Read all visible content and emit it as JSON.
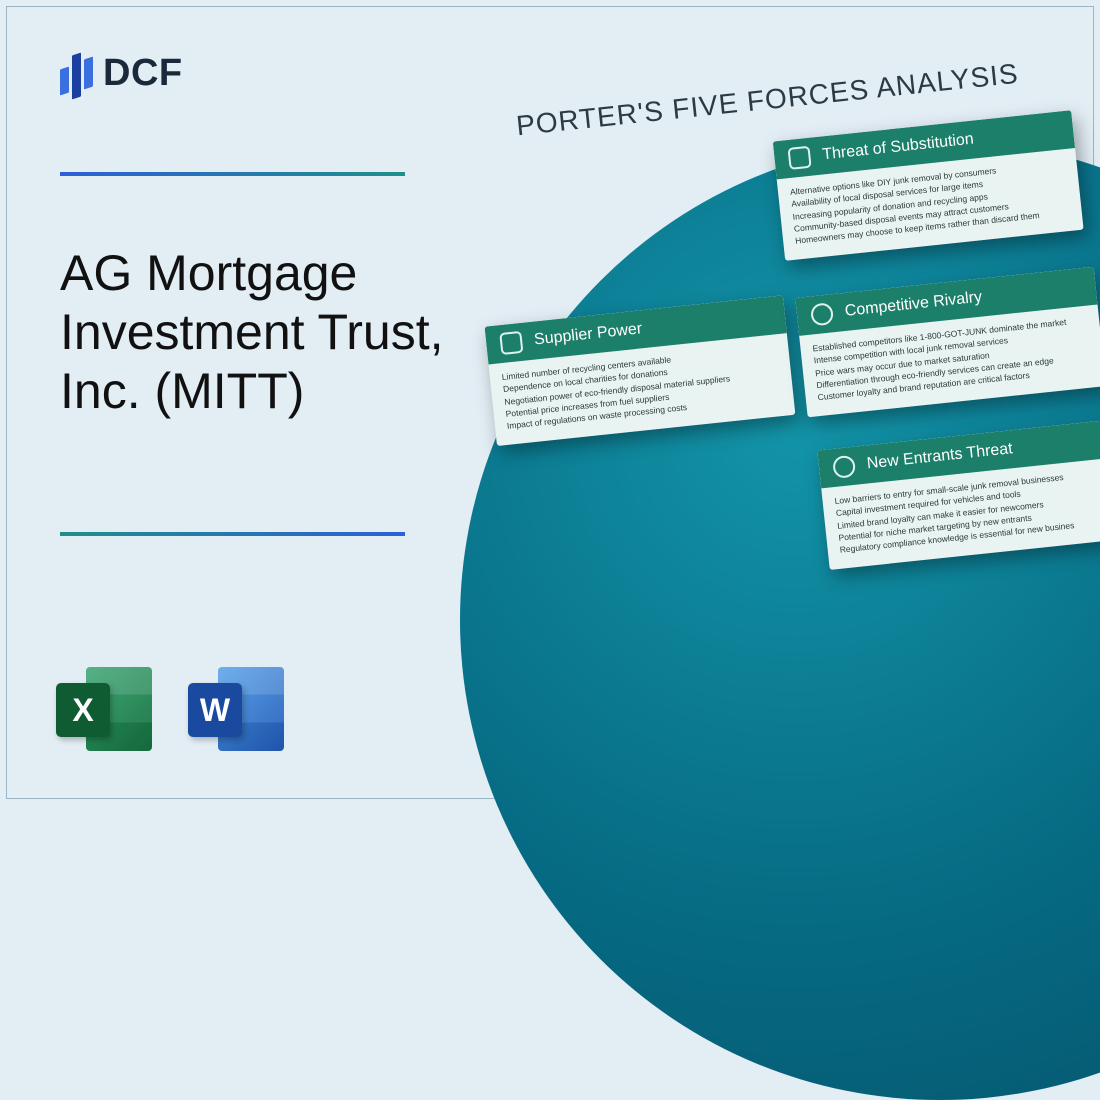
{
  "brand": {
    "name": "DCF"
  },
  "title": "AG Mortgage Investment Trust, Inc. (MITT)",
  "analysis_heading": "PORTER'S FIVE FORCES ANALYSIS",
  "colors": {
    "page_bg": "#e2edf4",
    "circle_gradient_inner": "#1394a8",
    "circle_gradient_outer": "#045168",
    "card_header_bg": "#1c7f6a",
    "card_bg": "#e9f3f2",
    "divider_start": "#2d5fd8",
    "divider_end": "#1f8f8a"
  },
  "file_icons": {
    "excel": {
      "letter": "X"
    },
    "word": {
      "letter": "W"
    }
  },
  "cards": {
    "substitution": {
      "title": "Threat of Substitution",
      "lines": [
        "Alternative options like DIY junk removal by consumers",
        "Availability of local disposal services for large items",
        "Increasing popularity of donation and recycling apps",
        "Community-based disposal events may attract customers",
        "Homeowners may choose to keep items rather than discard them"
      ]
    },
    "supplier": {
      "title": "Supplier Power",
      "lines": [
        "Limited number of recycling centers available",
        "Dependence on local charities for donations",
        "Negotiation power of eco-friendly disposal material suppliers",
        "Potential price increases from fuel suppliers",
        "Impact of regulations on waste processing costs"
      ]
    },
    "rivalry": {
      "title": "Competitive Rivalry",
      "lines": [
        "Established competitors like 1-800-GOT-JUNK dominate the market",
        "Intense competition with local junk removal services",
        "Price wars may occur due to market saturation",
        "Differentiation through eco-friendly services can create an edge",
        "Customer loyalty and brand reputation are critical factors"
      ]
    },
    "entrants": {
      "title": "New Entrants Threat",
      "lines": [
        "Low barriers to entry for small-scale junk removal businesses",
        "Capital investment required for vehicles and tools",
        "Limited brand loyalty can make it easier for newcomers",
        "Potential for niche market targeting by new entrants",
        "Regulatory compliance knowledge is essential for new busines"
      ]
    }
  }
}
